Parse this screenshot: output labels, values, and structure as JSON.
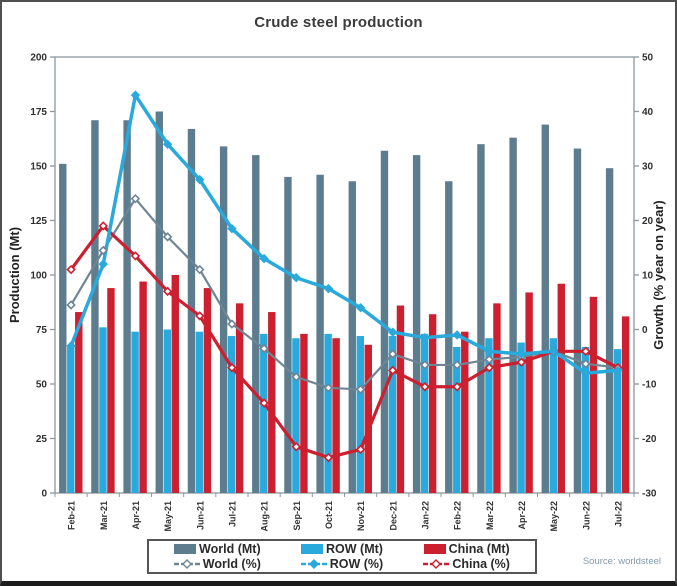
{
  "title": "Crude steel production",
  "source": "Source: worldsteel",
  "chart_data": {
    "type": "bar+line combo",
    "grid": false,
    "legend_position": "bottom",
    "categories": [
      "Feb-21",
      "Mar-21",
      "Apr-21",
      "May-21",
      "Jun-21",
      "Jul-21",
      "Aug-21",
      "Sep-21",
      "Oct-21",
      "Nov-21",
      "Dec-21",
      "Jan-22",
      "Feb-22",
      "Mar-22",
      "Apr-22",
      "May-22",
      "Jun-22",
      "Jul-22"
    ],
    "left_axis": {
      "label": "Production (Mt)",
      "min": 0,
      "max": 200,
      "step": 25,
      "ticks": [
        0,
        25,
        50,
        75,
        100,
        125,
        150,
        175,
        200
      ]
    },
    "right_axis": {
      "label": "Growth (% year on year)",
      "min": -30,
      "max": 50,
      "step": 10,
      "ticks": [
        -30,
        -20,
        -10,
        0,
        10,
        20,
        30,
        40,
        50
      ]
    },
    "bar_series": [
      {
        "name": "World (Mt)",
        "color": "#5d7d8e",
        "values": [
          151,
          171,
          171,
          175,
          167,
          159,
          155,
          145,
          146,
          143,
          157,
          155,
          143,
          160,
          163,
          169,
          158,
          149
        ]
      },
      {
        "name": "ROW (Mt)",
        "color": "#29a9dc",
        "values": [
          67,
          76,
          74,
          75,
          74,
          72,
          73,
          71,
          73,
          72,
          72,
          73,
          67,
          71,
          69,
          71,
          67,
          66
        ]
      },
      {
        "name": "China (Mt)",
        "color": "#cc1f2f",
        "values": [
          83,
          94,
          97,
          100,
          94,
          87,
          83,
          73,
          71,
          68,
          86,
          82,
          74,
          87,
          92,
          96,
          90,
          81
        ]
      }
    ],
    "line_series": [
      {
        "name": "World (%)",
        "color": "#6e8594",
        "marker": "open-diamond",
        "width": 2.2,
        "values": [
          4.5,
          14.5,
          24,
          17,
          11,
          1,
          -3.5,
          -8.7,
          -10.7,
          -11,
          -4.5,
          -6.5,
          -6.5,
          -5.5,
          -5,
          -4,
          -6.3,
          -7
        ]
      },
      {
        "name": "China (%)",
        "color": "#cc1f2f",
        "marker": "open-diamond",
        "width": 3.2,
        "values": [
          11,
          19,
          13.5,
          7,
          2.5,
          -7,
          -13.5,
          -21.5,
          -23.5,
          -22,
          -7.5,
          -10.5,
          -10.5,
          -7,
          -6,
          -4,
          -4,
          -7
        ]
      },
      {
        "name": "ROW (%)",
        "color": "#29a9dc",
        "marker": "solid-diamond",
        "width": 3.5,
        "values": [
          -3,
          12,
          43,
          34,
          27.5,
          18.5,
          13,
          9.5,
          7.5,
          4,
          -0.5,
          -1.5,
          -1,
          -4,
          -4.5,
          -4,
          -8,
          -7.5
        ]
      }
    ],
    "legend_rows": [
      [
        "World (Mt)",
        "ROW (Mt)",
        "China (Mt)"
      ],
      [
        "World (%)",
        "ROW (%)",
        "China (%)"
      ]
    ]
  },
  "colors": {
    "world": "#5d7d8e",
    "row": "#29a9dc",
    "china": "#cc1f2f",
    "world_line": "#6e8594",
    "axis": "#8d979e",
    "tick_text": "#2f2f2f",
    "title_text": "#3b3b3b",
    "source_text": "#8199ad"
  }
}
